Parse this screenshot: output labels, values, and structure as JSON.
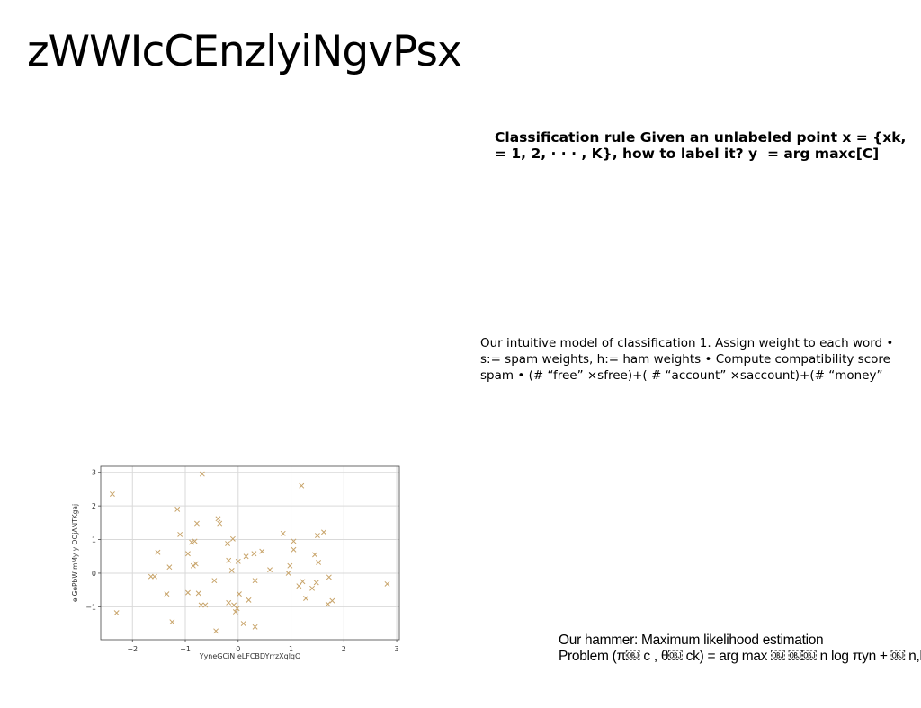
{
  "slide": {
    "title": "zWWIcCEnzlyiNgvPsx",
    "classification_rule": {
      "line1": "Classification rule Given an unlabeled point x = {xk,",
      "line2": "= 1, 2, · · · , K}, how to label it? y ￼ = arg maxc￼[C]"
    },
    "intuitive_model": {
      "line1": "Our intuitive model of classification 1. Assign weight to each word •",
      "line2": "s:= spam weights, h:= ham weights • Compute compatibility score",
      "line3": "spam • (# “free” ×sfree)+( # “account” ×saccount)+(# “money”"
    },
    "hammer": {
      "line1": "Our hammer: Maximum likelihood estimation",
      "line2": "Problem (π￼ c , θ￼ ck) = arg max ￼ ￼￼ n log πyn + ￼ n,k"
    }
  },
  "chart_data": {
    "type": "scatter",
    "xlabel": "YyneGCiN eLFCBDYrrzXqlqQ",
    "ylabel": "elGePbW mMy y OOjANTKgaj",
    "xlim": [
      -2.6,
      3.05
    ],
    "ylim": [
      -1.98,
      3.18
    ],
    "xticks": [
      -2,
      -1,
      0,
      1,
      2,
      3
    ],
    "yticks": [
      -1,
      0,
      1,
      2,
      3
    ],
    "xtick_labels": [
      "−2",
      "−1",
      "0",
      "1",
      "2",
      "3"
    ],
    "ytick_labels": [
      "−1",
      "0",
      "1",
      "2",
      "3"
    ],
    "grid": true,
    "marker": "x",
    "color": "#c8a46a",
    "points": [
      [
        -2.38,
        2.35
      ],
      [
        -2.3,
        -1.18
      ],
      [
        -1.65,
        -0.1
      ],
      [
        -1.58,
        -0.1
      ],
      [
        -1.52,
        0.62
      ],
      [
        -1.35,
        -0.62
      ],
      [
        -1.3,
        0.18
      ],
      [
        -1.25,
        -1.45
      ],
      [
        -1.15,
        1.9
      ],
      [
        -1.1,
        1.15
      ],
      [
        -0.95,
        -0.58
      ],
      [
        -0.95,
        0.58
      ],
      [
        -0.88,
        0.92
      ],
      [
        -0.85,
        0.22
      ],
      [
        -0.82,
        0.95
      ],
      [
        -0.8,
        0.28
      ],
      [
        -0.78,
        1.48
      ],
      [
        -0.75,
        -0.6
      ],
      [
        -0.7,
        -0.95
      ],
      [
        -0.68,
        2.95
      ],
      [
        -0.62,
        -0.95
      ],
      [
        -0.45,
        -0.22
      ],
      [
        -0.42,
        -1.72
      ],
      [
        -0.38,
        1.62
      ],
      [
        -0.35,
        1.48
      ],
      [
        -0.2,
        0.88
      ],
      [
        -0.18,
        -0.88
      ],
      [
        -0.18,
        0.38
      ],
      [
        -0.12,
        0.08
      ],
      [
        -0.1,
        1.02
      ],
      [
        -0.08,
        -0.95
      ],
      [
        -0.05,
        -1.15
      ],
      [
        -0.02,
        -1.05
      ],
      [
        0.0,
        0.35
      ],
      [
        0.02,
        -0.62
      ],
      [
        0.1,
        -1.5
      ],
      [
        0.15,
        0.5
      ],
      [
        0.2,
        -0.8
      ],
      [
        0.3,
        0.58
      ],
      [
        0.32,
        -0.22
      ],
      [
        0.32,
        -1.6
      ],
      [
        0.45,
        0.65
      ],
      [
        0.6,
        0.1
      ],
      [
        0.85,
        1.18
      ],
      [
        0.95,
        0.0
      ],
      [
        0.98,
        0.22
      ],
      [
        1.05,
        0.95
      ],
      [
        1.05,
        0.7
      ],
      [
        1.15,
        -0.38
      ],
      [
        1.2,
        2.6
      ],
      [
        1.22,
        -0.25
      ],
      [
        1.28,
        -0.75
      ],
      [
        1.4,
        -0.45
      ],
      [
        1.45,
        0.55
      ],
      [
        1.48,
        -0.28
      ],
      [
        1.5,
        1.12
      ],
      [
        1.52,
        0.32
      ],
      [
        1.62,
        1.22
      ],
      [
        1.7,
        -0.92
      ],
      [
        1.72,
        -0.12
      ],
      [
        1.78,
        -0.82
      ],
      [
        2.82,
        -0.32
      ]
    ]
  }
}
